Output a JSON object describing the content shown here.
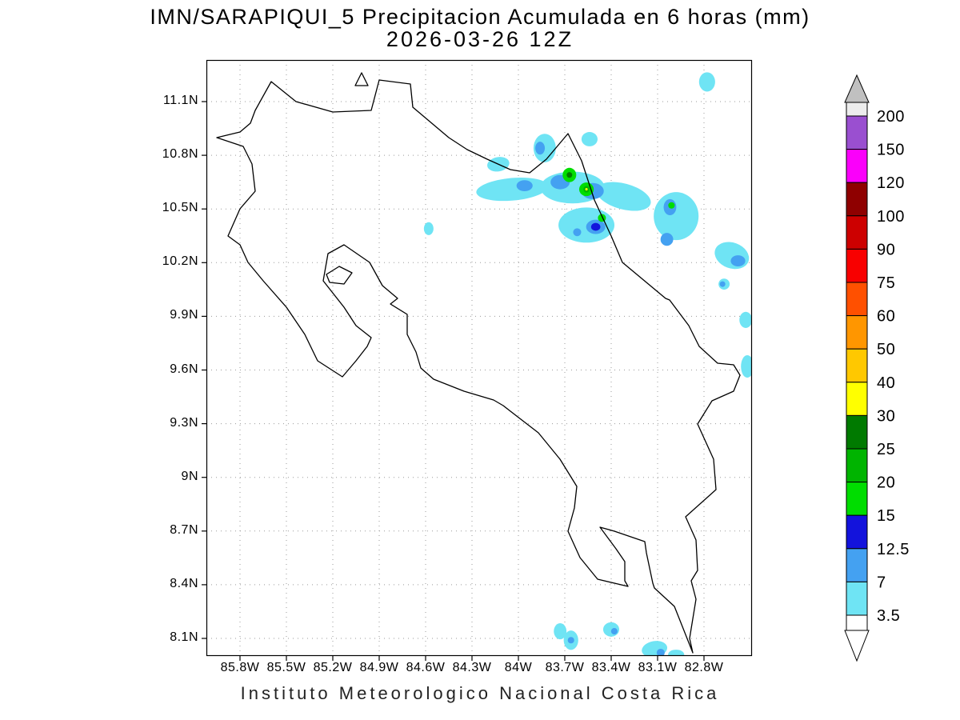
{
  "header": {
    "title": "IMN/SARAPIQUI_5 Precipitacion Acumulada en 6 horas (mm)",
    "subtitle": "2026-03-26 12Z"
  },
  "footer": {
    "caption": "Instituto Meteorologico Nacional Costa Rica"
  },
  "chart_data": {
    "type": "heatmap",
    "subtype": "geographic-precipitation-contour-map",
    "region": "Costa Rica",
    "title": "IMN/SARAPIQUI_5 Precipitacion Acumulada en 6 horas (mm)",
    "subtitle": "2026-03-26 12Z",
    "units": "mm",
    "axes": {
      "grid": true,
      "lat_ticks": [
        {
          "label": "11.1N",
          "value": 11.1
        },
        {
          "label": "10.8N",
          "value": 10.8
        },
        {
          "label": "10.5N",
          "value": 10.5
        },
        {
          "label": "10.2N",
          "value": 10.2
        },
        {
          "label": "9.9N",
          "value": 9.9
        },
        {
          "label": "9.6N",
          "value": 9.6
        },
        {
          "label": "9.3N",
          "value": 9.3
        },
        {
          "label": "9N",
          "value": 9.0
        },
        {
          "label": "8.7N",
          "value": 8.7
        },
        {
          "label": "8.4N",
          "value": 8.4
        },
        {
          "label": "8.1N",
          "value": 8.1
        }
      ],
      "lon_ticks": [
        {
          "label": "85.8W",
          "value": 85.8
        },
        {
          "label": "85.5W",
          "value": 85.5
        },
        {
          "label": "85.2W",
          "value": 85.2
        },
        {
          "label": "84.9W",
          "value": 84.9
        },
        {
          "label": "84.6W",
          "value": 84.6
        },
        {
          "label": "84.3W",
          "value": 84.3
        },
        {
          "label": "84W",
          "value": 84.0
        },
        {
          "label": "83.7W",
          "value": 83.7
        },
        {
          "label": "83.4W",
          "value": 83.4
        },
        {
          "label": "83.1W",
          "value": 83.1
        },
        {
          "label": "82.8W",
          "value": 82.8
        }
      ],
      "lat_range": [
        8.0,
        11.33
      ],
      "lon_range_west": [
        86.02,
        82.47
      ]
    },
    "colorbar": {
      "position": "right",
      "levels": [
        3.5,
        7,
        12.5,
        15,
        20,
        25,
        30,
        40,
        50,
        60,
        75,
        90,
        100,
        120,
        150,
        200
      ],
      "colors": [
        "#6fe4f4",
        "#44a1f1",
        "#1313dc",
        "#00dd00",
        "#00b400",
        "#007a00",
        "#ffff00",
        "#ffc800",
        "#ff9600",
        "#ff5000",
        "#f80000",
        "#cd0000",
        "#8f0000",
        "#fa00fa",
        "#9a4fd0",
        "#ededed"
      ],
      "below_color": "#ffffff",
      "arrow_top_color": "#c0c0c0",
      "arrow_bottom_color": "#ffffff"
    },
    "precip_cells": [
      {
        "lon": 83.83,
        "lat": 10.84,
        "rx": 0.072,
        "ry": 0.08,
        "rot": 0,
        "mm": 3.5
      },
      {
        "lon": 83.86,
        "lat": 10.84,
        "rx": 0.031,
        "ry": 0.036,
        "rot": 0,
        "mm": 7
      },
      {
        "lon": 83.54,
        "lat": 10.89,
        "rx": 0.052,
        "ry": 0.04,
        "rot": 0,
        "mm": 3.5
      },
      {
        "lon": 84.13,
        "lat": 10.75,
        "rx": 0.072,
        "ry": 0.04,
        "rot": -10,
        "mm": 3.5
      },
      {
        "lon": 84.04,
        "lat": 10.61,
        "rx": 0.233,
        "ry": 0.063,
        "rot": -5,
        "mm": 3.5
      },
      {
        "lon": 83.65,
        "lat": 10.62,
        "rx": 0.207,
        "ry": 0.089,
        "rot": 0,
        "mm": 3.5
      },
      {
        "lon": 83.32,
        "lat": 10.57,
        "rx": 0.181,
        "ry": 0.072,
        "rot": 15,
        "mm": 3.5
      },
      {
        "lon": 83.96,
        "lat": 10.63,
        "rx": 0.052,
        "ry": 0.031,
        "rot": 0,
        "mm": 7
      },
      {
        "lon": 83.73,
        "lat": 10.65,
        "rx": 0.062,
        "ry": 0.04,
        "rot": 0,
        "mm": 7
      },
      {
        "lon": 83.52,
        "lat": 10.6,
        "rx": 0.072,
        "ry": 0.045,
        "rot": 0,
        "mm": 7
      },
      {
        "lon": 83.67,
        "lat": 10.69,
        "rx": 0.044,
        "ry": 0.04,
        "rot": 0,
        "mm": 15
      },
      {
        "lon": 83.67,
        "lat": 10.69,
        "rx": 0.018,
        "ry": 0.016,
        "rot": 0,
        "mm": 25
      },
      {
        "lon": 83.56,
        "lat": 10.61,
        "rx": 0.047,
        "ry": 0.038,
        "rot": 0,
        "mm": 15
      },
      {
        "lon": 83.56,
        "lat": 10.61,
        "rx": 0.02,
        "ry": 0.018,
        "rot": 0,
        "mm": 20
      },
      {
        "lon": 83.56,
        "lat": 10.61,
        "rx": 0.008,
        "ry": 0.007,
        "rot": 0,
        "mm": 30
      },
      {
        "lon": 83.56,
        "lat": 10.41,
        "rx": 0.181,
        "ry": 0.098,
        "rot": 0,
        "mm": 3.5
      },
      {
        "lon": 83.5,
        "lat": 10.4,
        "rx": 0.062,
        "ry": 0.04,
        "rot": 0,
        "mm": 7
      },
      {
        "lon": 83.5,
        "lat": 10.4,
        "rx": 0.03,
        "ry": 0.022,
        "rot": 0,
        "mm": 12.5
      },
      {
        "lon": 83.46,
        "lat": 10.45,
        "rx": 0.026,
        "ry": 0.022,
        "rot": 0,
        "mm": 15
      },
      {
        "lon": 83.62,
        "lat": 10.37,
        "rx": 0.026,
        "ry": 0.022,
        "rot": 0,
        "mm": 7
      },
      {
        "lon": 82.98,
        "lat": 10.46,
        "rx": 0.145,
        "ry": 0.134,
        "rot": 0,
        "mm": 3.5
      },
      {
        "lon": 83.02,
        "lat": 10.51,
        "rx": 0.041,
        "ry": 0.045,
        "rot": 0,
        "mm": 7
      },
      {
        "lon": 83.01,
        "lat": 10.52,
        "rx": 0.021,
        "ry": 0.018,
        "rot": 0,
        "mm": 15
      },
      {
        "lon": 83.04,
        "lat": 10.33,
        "rx": 0.041,
        "ry": 0.036,
        "rot": 0,
        "mm": 7
      },
      {
        "lon": 82.62,
        "lat": 10.24,
        "rx": 0.114,
        "ry": 0.072,
        "rot": 20,
        "mm": 3.5
      },
      {
        "lon": 82.58,
        "lat": 10.21,
        "rx": 0.047,
        "ry": 0.031,
        "rot": 0,
        "mm": 7
      },
      {
        "lon": 84.58,
        "lat": 10.39,
        "rx": 0.031,
        "ry": 0.036,
        "rot": 0,
        "mm": 3.5
      },
      {
        "lon": 82.67,
        "lat": 10.08,
        "rx": 0.036,
        "ry": 0.031,
        "rot": 0,
        "mm": 3.5
      },
      {
        "lon": 82.68,
        "lat": 10.08,
        "rx": 0.018,
        "ry": 0.016,
        "rot": 0,
        "mm": 7
      },
      {
        "lon": 82.53,
        "lat": 9.88,
        "rx": 0.041,
        "ry": 0.045,
        "rot": 0,
        "mm": 3.5
      },
      {
        "lon": 82.52,
        "lat": 9.62,
        "rx": 0.041,
        "ry": 0.063,
        "rot": 0,
        "mm": 3.5
      },
      {
        "lon": 82.78,
        "lat": 11.21,
        "rx": 0.052,
        "ry": 0.054,
        "rot": 0,
        "mm": 3.5
      },
      {
        "lon": 83.73,
        "lat": 8.14,
        "rx": 0.041,
        "ry": 0.045,
        "rot": 0,
        "mm": 3.5
      },
      {
        "lon": 83.66,
        "lat": 8.09,
        "rx": 0.047,
        "ry": 0.054,
        "rot": 0,
        "mm": 3.5
      },
      {
        "lon": 83.66,
        "lat": 8.09,
        "rx": 0.021,
        "ry": 0.018,
        "rot": 0,
        "mm": 7
      },
      {
        "lon": 83.4,
        "lat": 8.15,
        "rx": 0.052,
        "ry": 0.04,
        "rot": 0,
        "mm": 3.5
      },
      {
        "lon": 83.38,
        "lat": 8.14,
        "rx": 0.021,
        "ry": 0.018,
        "rot": 0,
        "mm": 7
      },
      {
        "lon": 83.12,
        "lat": 8.04,
        "rx": 0.083,
        "ry": 0.045,
        "rot": -10,
        "mm": 3.5
      },
      {
        "lon": 83.08,
        "lat": 8.02,
        "rx": 0.026,
        "ry": 0.022,
        "rot": 0,
        "mm": 7
      },
      {
        "lon": 82.98,
        "lat": 8.01,
        "rx": 0.052,
        "ry": 0.027,
        "rot": 0,
        "mm": 3.5
      }
    ]
  }
}
